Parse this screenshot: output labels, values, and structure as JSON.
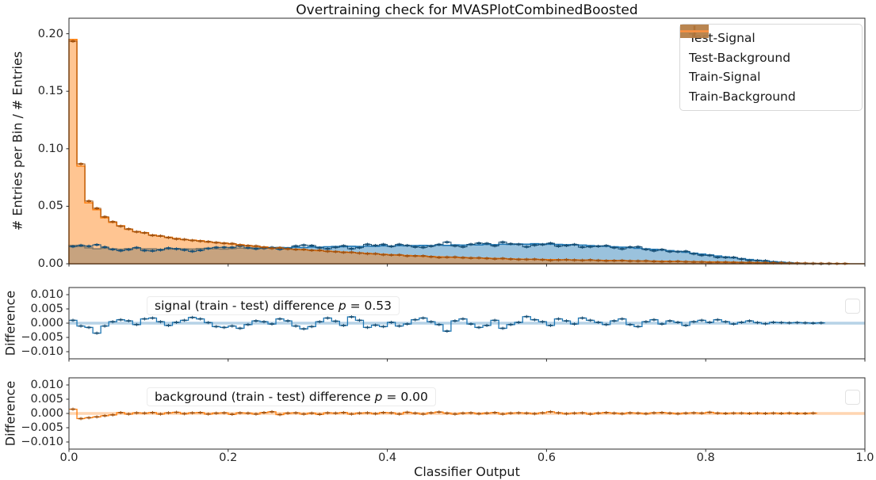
{
  "title": "Overtraining check for MVASPlotCombinedBoosted",
  "xlabel": "Classifier Output",
  "xticks": {
    "labels": [
      "0.0",
      "0.2",
      "0.4",
      "0.6",
      "0.8",
      "1.0"
    ],
    "values": [
      0,
      0.2,
      0.4,
      0.6,
      0.8,
      1.0
    ]
  },
  "colors": {
    "signal_line": "#1f77b4",
    "signal_fill": "rgba(31,119,180,0.45)",
    "signal_dark": "#174f75",
    "background_line": "#ff7f0e",
    "background_fill": "rgba(255,127,14,0.45)",
    "background_dark": "#a4530e",
    "signal_zero_band": "rgba(31,119,180,0.32)",
    "background_zero_band": "rgba(255,127,14,0.32)",
    "axis": "#2b2b2b"
  },
  "legend": {
    "items": [
      {
        "label": "Test-Signal",
        "marker": "blue patch with dark-blue errorbar cross"
      },
      {
        "label": "Test-Background",
        "marker": "orange patch with dark-orange errorbar cross"
      },
      {
        "label": "Train-Signal",
        "marker": "blue patch with blue line"
      },
      {
        "label": "Train-Background",
        "marker": "orange patch with orange line"
      }
    ]
  },
  "panels": {
    "main": {
      "ylabel": "# Entries per Bin / # Entries",
      "yticks": {
        "labels": [
          "0.00",
          "0.05",
          "0.10",
          "0.15",
          "0.20"
        ],
        "values": [
          0,
          0.05,
          0.1,
          0.15,
          0.2
        ]
      }
    },
    "signal_diff": {
      "ylabel": "Difference",
      "yticks": {
        "labels": [
          "0.010",
          "0.005",
          "0.000",
          "−0.005",
          "−0.010"
        ],
        "values": [
          0.01,
          0.005,
          0,
          -0.005,
          -0.01
        ]
      }
    },
    "background_diff": {
      "ylabel": "Difference",
      "yticks": {
        "labels": [
          "0.010",
          "0.005",
          "0.000",
          "−0.005",
          "−0.010"
        ],
        "values": [
          0.01,
          0.005,
          0,
          -0.005,
          -0.01
        ]
      }
    }
  },
  "chart_data": [
    {
      "type": "area",
      "style": "filled step histograms (train) with errorbar step overlays (test)",
      "title": "Overtraining check for MVASPlotCombinedBoosted",
      "xlabel": "Classifier Output",
      "ylabel": "# Entries per Bin / # Entries",
      "xlim": [
        0,
        1
      ],
      "ylim": [
        0,
        0.2135
      ],
      "bin_width": 0.01,
      "n_bins": 100,
      "grid": false,
      "legend_position": "upper right",
      "series": [
        {
          "name": "Train-Signal",
          "color": "#1f77b4",
          "fill": true,
          "values": [
            0.016,
            0.015,
            0.0138,
            0.013,
            0.0135,
            0.013,
            0.0126,
            0.0131,
            0.0135,
            0.013,
            0.013,
            0.0125,
            0.0128,
            0.0132,
            0.013,
            0.0128,
            0.0132,
            0.0135,
            0.013,
            0.0128,
            0.0132,
            0.0136,
            0.0134,
            0.0138,
            0.014,
            0.0138,
            0.0142,
            0.014,
            0.0144,
            0.0142,
            0.0146,
            0.0144,
            0.0148,
            0.015,
            0.0148,
            0.0152,
            0.015,
            0.0154,
            0.0152,
            0.0156,
            0.0154,
            0.0158,
            0.0156,
            0.0158,
            0.016,
            0.0158,
            0.0162,
            0.016,
            0.0164,
            0.0162,
            0.0166,
            0.0164,
            0.0168,
            0.0166,
            0.017,
            0.0168,
            0.0172,
            0.017,
            0.0174,
            0.0172,
            0.017,
            0.0168,
            0.0166,
            0.0164,
            0.0162,
            0.0158,
            0.0155,
            0.0152,
            0.0148,
            0.0144,
            0.014,
            0.0135,
            0.013,
            0.0125,
            0.012,
            0.0114,
            0.0108,
            0.01,
            0.0092,
            0.0084,
            0.0076,
            0.0068,
            0.006,
            0.0052,
            0.0044,
            0.0037,
            0.003,
            0.0024,
            0.0018,
            0.0013,
            0.0009,
            0.0006,
            0.0004,
            0.0002,
            0.0001,
            0.0001,
            0.0,
            0.0,
            0.0,
            0.0
          ]
        },
        {
          "name": "Train-Background",
          "color": "#ff7f0e",
          "fill": true,
          "values": [
            0.195,
            0.085,
            0.053,
            0.047,
            0.04,
            0.036,
            0.033,
            0.03,
            0.028,
            0.027,
            0.025,
            0.024,
            0.023,
            0.022,
            0.021,
            0.0205,
            0.02,
            0.019,
            0.0185,
            0.018,
            0.0172,
            0.0165,
            0.0158,
            0.0152,
            0.0146,
            0.014,
            0.0135,
            0.013,
            0.0126,
            0.0122,
            0.0118,
            0.0114,
            0.011,
            0.0106,
            0.0102,
            0.0098,
            0.0094,
            0.009,
            0.0086,
            0.0082,
            0.0078,
            0.0075,
            0.0072,
            0.0069,
            0.0066,
            0.0063,
            0.006,
            0.0058,
            0.0056,
            0.0054,
            0.0052,
            0.005,
            0.0048,
            0.0046,
            0.0044,
            0.0042,
            0.004,
            0.0039,
            0.0038,
            0.0037,
            0.0036,
            0.0035,
            0.0034,
            0.0033,
            0.0032,
            0.0031,
            0.003,
            0.0029,
            0.0028,
            0.0027,
            0.0026,
            0.0025,
            0.0024,
            0.0023,
            0.0022,
            0.0021,
            0.002,
            0.0019,
            0.0018,
            0.0017,
            0.0016,
            0.0015,
            0.0014,
            0.0013,
            0.0012,
            0.0011,
            0.001,
            0.0009,
            0.0008,
            0.0007,
            0.0006,
            0.0005,
            0.0004,
            0.0003,
            0.0002,
            0.0002,
            0.0001,
            0.0001,
            0.0,
            0.0
          ]
        },
        {
          "name": "Test-Signal",
          "color": "#174f75",
          "style": "errorbar",
          "values_note": "equals Train-Signal values minus the signal difference series (panel 2)"
        },
        {
          "name": "Test-Background",
          "color": "#a4530e",
          "style": "errorbar",
          "values_note": "equals Train-Background values minus the background difference series (panel 3)"
        }
      ]
    },
    {
      "type": "line",
      "style": "step",
      "name": "signal-difference",
      "annotation": "signal (train - test) difference p = 0.53",
      "annotation_parts": {
        "prefix": "signal (train - test) difference ",
        "p": "p",
        "value": " = 0.53"
      },
      "p_value": 0.53,
      "ylabel": "Difference",
      "xlim": [
        0,
        1
      ],
      "ylim": [
        -0.0125,
        0.0125
      ],
      "bin_width": 0.01,
      "color": "#1f77b4",
      "zero_band_color": "rgba(31,119,180,0.32)",
      "values": [
        0.001,
        -0.001,
        -0.0015,
        -0.0035,
        -0.001,
        0.0005,
        0.0012,
        0.0008,
        -0.0005,
        0.0015,
        0.0018,
        0.0005,
        -0.0008,
        0.0003,
        0.001,
        0.002,
        0.0015,
        0.0002,
        -0.0012,
        -0.0015,
        -0.001,
        -0.0018,
        -0.0005,
        0.0008,
        0.0005,
        -0.0003,
        0.0015,
        0.0008,
        -0.001,
        -0.002,
        -0.0012,
        0.0005,
        0.0018,
        0.0007,
        -0.0008,
        0.0022,
        0.001,
        -0.0015,
        -0.0007,
        -0.0012,
        0.0003,
        -0.001,
        -0.0003,
        0.0012,
        0.0018,
        0.0005,
        -0.0005,
        -0.0028,
        0.0008,
        0.0015,
        -0.0003,
        -0.0015,
        -0.0008,
        0.001,
        -0.0018,
        -0.0005,
        0.0003,
        0.0023,
        0.0012,
        0.0005,
        -0.0008,
        0.0015,
        0.0008,
        -0.0003,
        0.0018,
        0.001,
        0.0003,
        -0.0005,
        0.0008,
        0.0015,
        -0.0005,
        -0.0012,
        0.0005,
        0.0012,
        -0.0003,
        0.0008,
        0.0003,
        -0.0008,
        0.0005,
        0.001,
        0.0003,
        0.0012,
        0.0005,
        -0.0003,
        0.0003,
        0.0008,
        0.0002,
        -0.0002,
        0.0003,
        0.0002,
        0.0001,
        0.0002,
        0.0001,
        0.0,
        0.0001,
        0.0,
        0.0,
        0.0,
        0.0,
        0.0
      ]
    },
    {
      "type": "line",
      "style": "step",
      "name": "background-difference",
      "annotation": "background (train - test) difference p = 0.00",
      "annotation_parts": {
        "prefix": "background (train - test) difference ",
        "p": "p",
        "value": " = 0.00"
      },
      "p_value": 0.0,
      "ylabel": "Difference",
      "xlim": [
        0,
        1
      ],
      "ylim": [
        -0.0125,
        0.0125
      ],
      "bin_width": 0.01,
      "color": "#ff7f0e",
      "zero_band_color": "rgba(255,127,14,0.32)",
      "values": [
        0.0015,
        -0.0018,
        -0.0015,
        -0.0012,
        -0.0008,
        -0.0005,
        0.0003,
        -0.0002,
        0.0002,
        0.0001,
        0.0003,
        -0.0002,
        0.0002,
        0.0004,
        -0.0001,
        0.0002,
        0.0003,
        -0.0002,
        0.0001,
        0.0002,
        -0.0003,
        0.0002,
        0.0001,
        -0.0002,
        0.0003,
        0.0006,
        -0.0004,
        0.0001,
        0.0002,
        -0.0002,
        0.0001,
        -0.0003,
        0.0002,
        0.0001,
        0.0003,
        -0.0002,
        0.0001,
        0.0002,
        -0.0001,
        0.0003,
        0.0002,
        -0.0002,
        0.0004,
        0.0001,
        -0.0002,
        0.0002,
        0.0005,
        0.0001,
        -0.0002,
        0.0001,
        0.0002,
        -0.0001,
        0.0001,
        0.0003,
        -0.0002,
        0.0001,
        0.0002,
        0.0001,
        -0.0001,
        0.0002,
        0.0006,
        0.0002,
        -0.0001,
        0.0001,
        0.0002,
        -0.0002,
        0.0001,
        0.0003,
        0.0001,
        -0.0001,
        0.0002,
        0.0001,
        -0.0001,
        0.0002,
        0.0003,
        0.0001,
        -0.0001,
        0.0001,
        0.0002,
        0.0001,
        0.0004,
        0.0001,
        0.0,
        0.0001,
        0.0001,
        0.0,
        0.0001,
        0.0,
        0.0001,
        0.0,
        0.0001,
        0.0,
        0.0,
        0.0001,
        0.0,
        0.0,
        0.0,
        0.0,
        0.0,
        0.0
      ]
    }
  ]
}
